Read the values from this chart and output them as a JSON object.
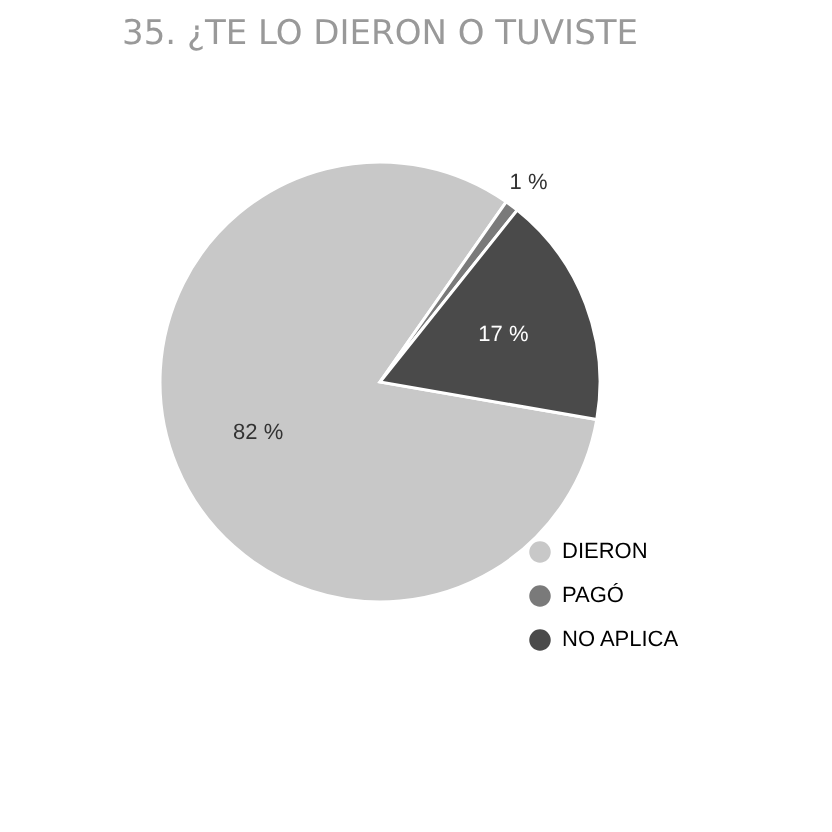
{
  "chart_data": {
    "type": "pie",
    "title": "35. ¿TE LO DIERON O TUVISTE",
    "categories": [
      "DIERON",
      "PAGÓ",
      "NO APLICA"
    ],
    "values": [
      82,
      1,
      17
    ],
    "colors": [
      "#c8c8c8",
      "#7a7a7a",
      "#4a4a4a"
    ],
    "value_labels": [
      "82 %",
      "1 %",
      "17 %"
    ],
    "legend": "bottom right"
  }
}
